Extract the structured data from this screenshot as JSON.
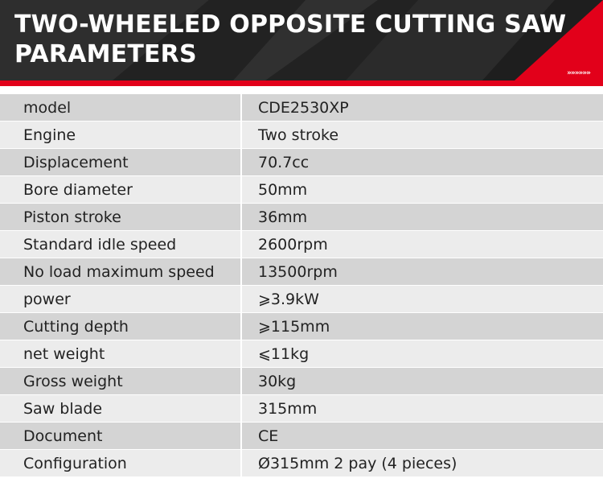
{
  "header": {
    "title_line1": "TWO-WHEELED OPPOSITE CUTTING SAW",
    "title_line2": "PARAMETERS",
    "chevrons": "»»»»»»",
    "accent_color": "#e2001a",
    "background_color": "#262626"
  },
  "specs": [
    {
      "label": "model",
      "value": "CDE2530XP"
    },
    {
      "label": "Engine",
      "value": "Two stroke"
    },
    {
      "label": "Displacement",
      "value": "70.7cc"
    },
    {
      "label": "Bore diameter",
      "value": "50mm"
    },
    {
      "label": "Piston stroke",
      "value": "36mm"
    },
    {
      "label": "Standard idle speed",
      "value": "2600rpm"
    },
    {
      "label": "No load maximum speed",
      "value": "13500rpm"
    },
    {
      "label": "power",
      "value": "⩾3.9kW"
    },
    {
      "label": "Cutting depth",
      "value": "⩾115mm"
    },
    {
      "label": "net weight",
      "value": "⩽11kg"
    },
    {
      "label": "Gross weight",
      "value": "30kg"
    },
    {
      "label": "Saw blade",
      "value": "315mm"
    },
    {
      "label": "Document",
      "value": "CE"
    },
    {
      "label": "Configuration",
      "value": "Ø315mm 2 pay (4 pieces)"
    }
  ]
}
